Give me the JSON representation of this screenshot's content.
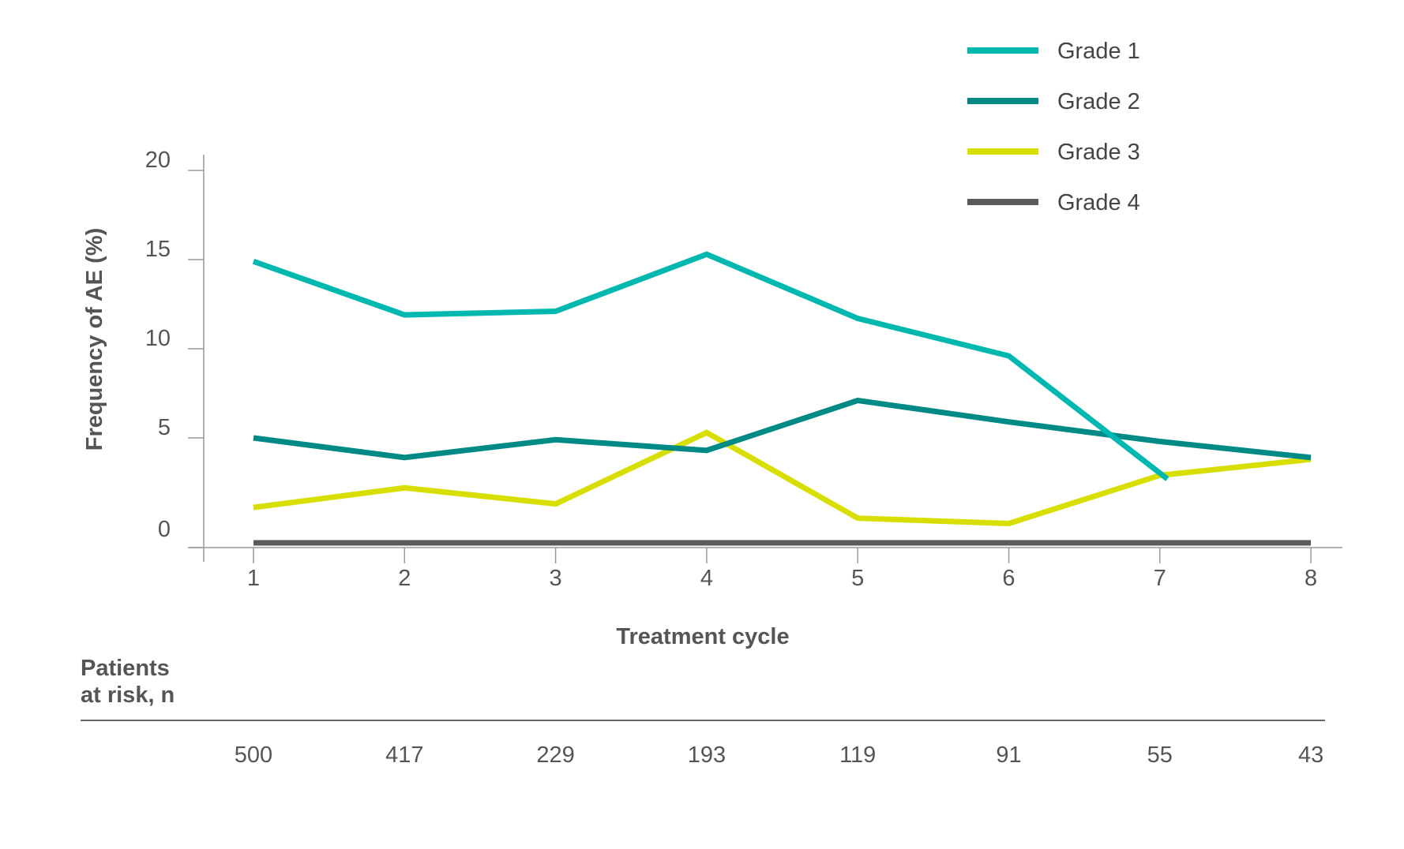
{
  "chart_data": {
    "type": "line",
    "xlabel": "Treatment cycle",
    "ylabel": "Frequency of AE (%)",
    "x": [
      1,
      2,
      3,
      4,
      5,
      6,
      7,
      8
    ],
    "x_tick_labels": [
      "1",
      "2",
      "3",
      "4",
      "5",
      "6",
      "7",
      "8"
    ],
    "ylim": [
      0,
      20
    ],
    "y_ticks": [
      0,
      5,
      10,
      15,
      20
    ],
    "y_tick_labels": [
      "0",
      "5",
      "10",
      "15",
      "20"
    ],
    "grid": false,
    "legend_position": "top-right",
    "series": [
      {
        "name": "Grade 1",
        "color": "#00b8b0",
        "x": [
          1,
          2,
          3,
          4,
          5,
          6,
          7.05
        ],
        "values": [
          14.9,
          11.9,
          12.1,
          15.3,
          11.7,
          9.6,
          2.7
        ]
      },
      {
        "name": "Grade 2",
        "color": "#008a86",
        "x": [
          1,
          2,
          3,
          4,
          5,
          6,
          7,
          8
        ],
        "values": [
          5.0,
          3.9,
          4.9,
          4.3,
          7.1,
          5.9,
          4.8,
          3.9
        ]
      },
      {
        "name": "Grade 3",
        "color": "#d8df00",
        "x": [
          1,
          2,
          3,
          4,
          5,
          6,
          7,
          8
        ],
        "values": [
          1.1,
          2.2,
          1.3,
          5.3,
          0.5,
          0.2,
          2.9,
          3.8
        ]
      },
      {
        "name": "Grade 4",
        "color": "#5a5a5a",
        "x": [
          1,
          2,
          3,
          4,
          5,
          6,
          7,
          8
        ],
        "values": [
          0,
          0,
          0,
          0,
          0,
          0,
          0,
          0
        ]
      }
    ],
    "risk_table": {
      "label_line1": "Patients",
      "label_line2": "at risk, n",
      "values": [
        "500",
        "417",
        "229",
        "193",
        "119",
        "91",
        "55",
        "43"
      ]
    }
  }
}
